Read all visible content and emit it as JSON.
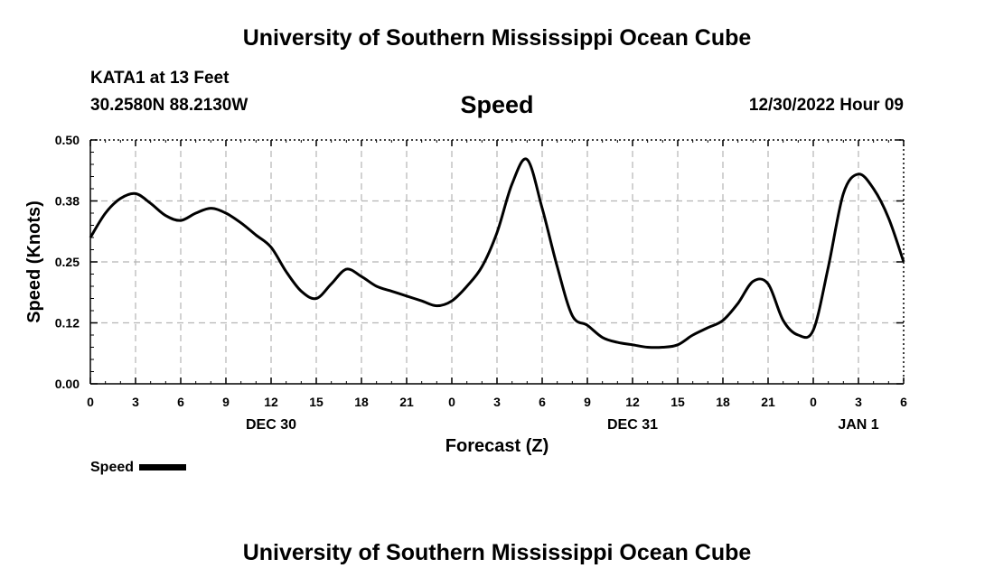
{
  "header": {
    "title_top": "University of Southern Mississippi Ocean Cube",
    "station": "KATA1 at 13 Feet",
    "coords": "30.2580N  88.2130W",
    "chart_title": "Speed",
    "timestamp": "12/30/2022 Hour 09",
    "title_bottom": "University of Southern Mississippi Ocean Cube"
  },
  "legend": {
    "label": "Speed"
  },
  "chart_data": {
    "type": "line",
    "title": "Speed",
    "xlabel": "Forecast (Z)",
    "ylabel": "Speed (Knots)",
    "ylim": [
      0,
      0.5
    ],
    "xlim_hours": [
      0,
      54
    ],
    "y_ticks": [
      "0.00",
      "0.12",
      "0.25",
      "0.38",
      "0.50"
    ],
    "x_ticks": [
      "0",
      "3",
      "6",
      "9",
      "12",
      "15",
      "18",
      "21",
      "0",
      "3",
      "6",
      "9",
      "12",
      "15",
      "18",
      "21",
      "0",
      "3",
      "6"
    ],
    "day_labels": [
      {
        "label": "DEC 30",
        "hour": 12
      },
      {
        "label": "DEC 31",
        "hour": 36
      },
      {
        "label": "JAN 1",
        "hour": 51
      }
    ],
    "grid": true,
    "line_color": "#000000",
    "series": [
      {
        "name": "Speed",
        "x": [
          0,
          1,
          2,
          3,
          4,
          5,
          6,
          7,
          8,
          9,
          10,
          11,
          12,
          13,
          14,
          15,
          16,
          17,
          18,
          19,
          20,
          21,
          22,
          23,
          24,
          25,
          26,
          27,
          28,
          29,
          30,
          31,
          32,
          33,
          34,
          35,
          36,
          37,
          38,
          39,
          40,
          41,
          42,
          43,
          44,
          45,
          46,
          47,
          48,
          49,
          50,
          51,
          52,
          53,
          54
        ],
        "y": [
          0.3,
          0.35,
          0.38,
          0.39,
          0.37,
          0.345,
          0.335,
          0.35,
          0.36,
          0.35,
          0.33,
          0.305,
          0.28,
          0.23,
          0.19,
          0.175,
          0.205,
          0.235,
          0.22,
          0.2,
          0.19,
          0.18,
          0.17,
          0.16,
          0.17,
          0.2,
          0.24,
          0.31,
          0.41,
          0.46,
          0.36,
          0.24,
          0.14,
          0.12,
          0.095,
          0.085,
          0.08,
          0.075,
          0.075,
          0.08,
          0.1,
          0.115,
          0.13,
          0.165,
          0.21,
          0.205,
          0.13,
          0.1,
          0.11,
          0.24,
          0.39,
          0.43,
          0.4,
          0.34,
          0.25
        ]
      }
    ]
  }
}
